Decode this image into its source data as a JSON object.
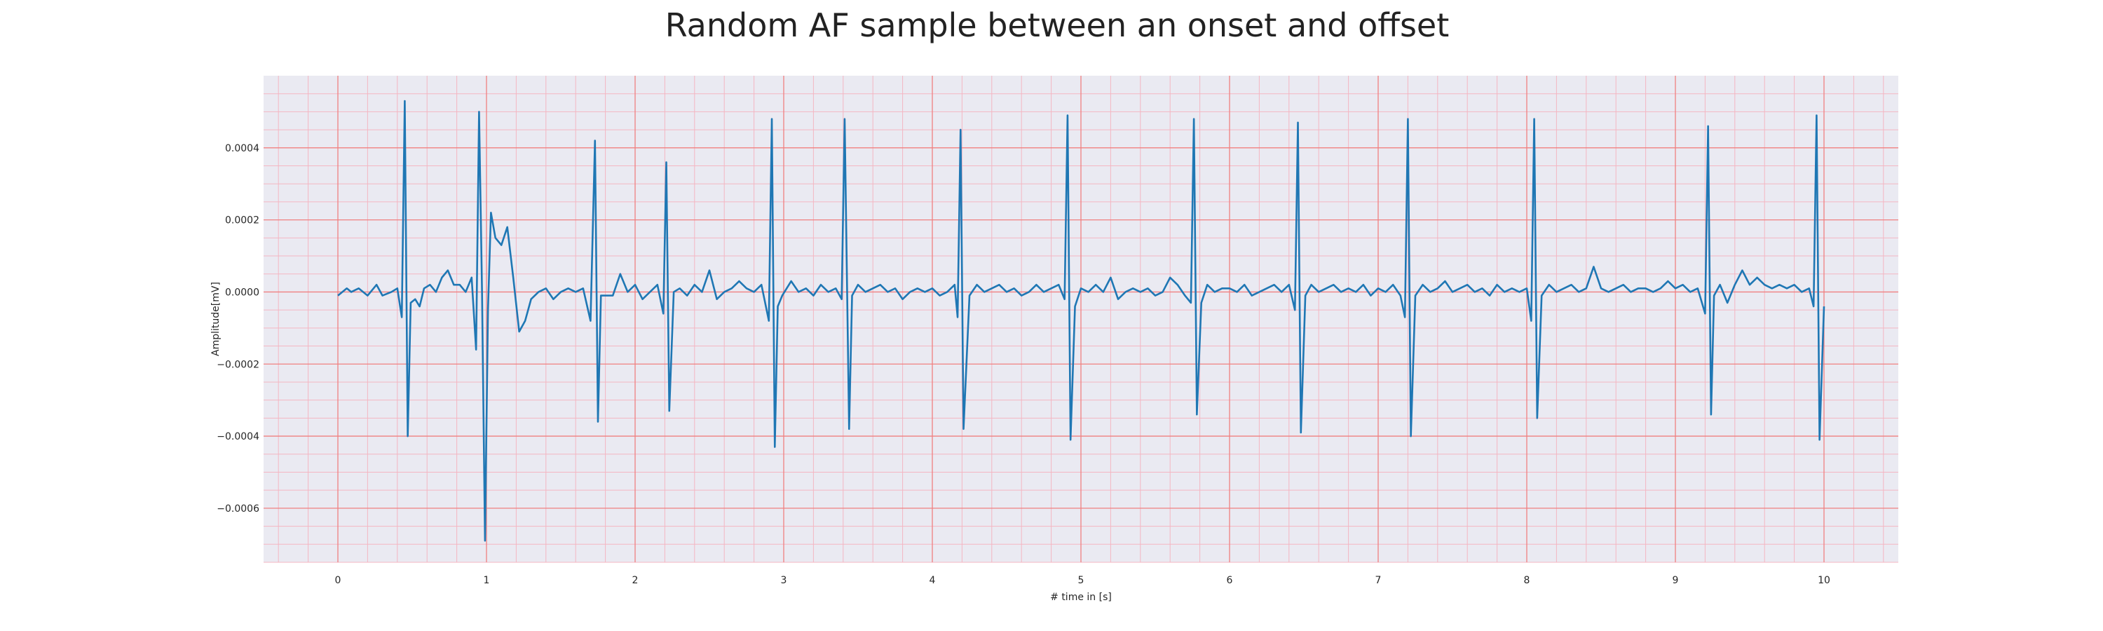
{
  "chart_data": {
    "type": "line",
    "title": "Random AF sample between an onset and offset",
    "xlabel": "# time in [s]",
    "ylabel": "Amplitude[mV]",
    "xlim": [
      -0.5,
      10.5
    ],
    "ylim": [
      -0.00075,
      0.0006
    ],
    "xticks": [
      0,
      1,
      2,
      3,
      4,
      5,
      6,
      7,
      8,
      9,
      10
    ],
    "xtick_labels": [
      "0",
      "1",
      "2",
      "3",
      "4",
      "5",
      "6",
      "7",
      "8",
      "9",
      "10"
    ],
    "yticks": [
      0.0004,
      0.0002,
      0.0,
      -0.0002,
      -0.0004,
      -0.0006
    ],
    "ytick_labels": [
      "0.0004",
      "0.0002",
      "0.0000",
      "−0.0002",
      "−0.0004",
      "−0.0006"
    ],
    "grid": true,
    "grid_minor": true,
    "legend": false,
    "colors": {
      "line": "#1f77b4",
      "background": "#eaeaf2",
      "major_grid": "#f08080",
      "minor_grid": "#f4b6c2"
    },
    "series": [
      {
        "x": [
          0,
          0.06,
          0.09,
          0.14,
          0.2,
          0.26,
          0.3,
          0.36,
          0.4,
          0.43,
          0.45,
          0.47,
          0.49,
          0.52,
          0.55,
          0.58,
          0.62,
          0.66,
          0.7,
          0.74,
          0.78,
          0.82,
          0.86,
          0.9,
          0.93,
          0.95,
          0.97,
          0.99,
          1.01,
          1.03,
          1.06,
          1.1,
          1.14,
          1.18,
          1.22,
          1.26,
          1.3,
          1.35,
          1.4,
          1.45,
          1.5,
          1.55,
          1.6,
          1.65,
          1.7,
          1.73,
          1.75,
          1.77,
          1.8,
          1.85,
          1.9,
          1.95,
          2.0,
          2.05,
          2.1,
          2.15,
          2.19,
          2.21,
          2.23,
          2.26,
          2.3,
          2.35,
          2.4,
          2.45,
          2.5,
          2.55,
          2.6,
          2.65,
          2.7,
          2.75,
          2.8,
          2.85,
          2.9,
          2.92,
          2.94,
          2.96,
          2.99,
          3.05,
          3.1,
          3.15,
          3.2,
          3.25,
          3.3,
          3.35,
          3.39,
          3.41,
          3.44,
          3.46,
          3.5,
          3.55,
          3.6,
          3.65,
          3.7,
          3.75,
          3.8,
          3.85,
          3.9,
          3.95,
          4.0,
          4.05,
          4.1,
          4.15,
          4.17,
          4.19,
          4.21,
          4.25,
          4.3,
          4.35,
          4.4,
          4.45,
          4.5,
          4.55,
          4.6,
          4.65,
          4.7,
          4.75,
          4.8,
          4.85,
          4.89,
          4.91,
          4.93,
          4.96,
          5.0,
          5.05,
          5.1,
          5.15,
          5.2,
          5.25,
          5.3,
          5.35,
          5.4,
          5.45,
          5.5,
          5.55,
          5.6,
          5.65,
          5.7,
          5.74,
          5.76,
          5.78,
          5.81,
          5.85,
          5.9,
          5.95,
          6.0,
          6.05,
          6.1,
          6.15,
          6.2,
          6.25,
          6.3,
          6.35,
          6.4,
          6.44,
          6.46,
          6.48,
          6.51,
          6.55,
          6.6,
          6.65,
          6.7,
          6.75,
          6.8,
          6.85,
          6.9,
          6.95,
          7.0,
          7.05,
          7.1,
          7.15,
          7.18,
          7.2,
          7.22,
          7.25,
          7.3,
          7.35,
          7.4,
          7.45,
          7.5,
          7.55,
          7.6,
          7.65,
          7.7,
          7.75,
          7.8,
          7.85,
          7.9,
          7.95,
          8.0,
          8.03,
          8.05,
          8.07,
          8.1,
          8.15,
          8.2,
          8.25,
          8.3,
          8.35,
          8.4,
          8.45,
          8.5,
          8.55,
          8.6,
          8.65,
          8.7,
          8.75,
          8.8,
          8.85,
          8.9,
          8.95,
          9.0,
          9.05,
          9.1,
          9.15,
          9.2,
          9.22,
          9.24,
          9.26,
          9.3,
          9.35,
          9.4,
          9.45,
          9.5,
          9.55,
          9.6,
          9.65,
          9.7,
          9.75,
          9.8,
          9.85,
          9.9,
          9.93,
          9.95,
          9.97,
          10.0
        ],
        "values": [
          -1e-05,
          1e-05,
          0.0,
          1e-05,
          -1e-05,
          2e-05,
          -1e-05,
          0.0,
          1e-05,
          -7e-05,
          0.00053,
          -0.0004,
          -3e-05,
          -2e-05,
          -4e-05,
          1e-05,
          2e-05,
          0.0,
          4e-05,
          6e-05,
          2e-05,
          2e-05,
          0.0,
          4e-05,
          -0.00016,
          0.0005,
          0.0,
          -0.00069,
          -5e-05,
          0.00022,
          0.00015,
          0.00013,
          0.00018,
          4e-05,
          -0.00011,
          -8e-05,
          -2e-05,
          0.0,
          1e-05,
          -2e-05,
          0.0,
          1e-05,
          0.0,
          1e-05,
          -8e-05,
          0.00042,
          -0.00036,
          -1e-05,
          -1e-05,
          -1e-05,
          5e-05,
          0.0,
          2e-05,
          -2e-05,
          0.0,
          2e-05,
          -6e-05,
          0.00036,
          -0.00033,
          0.0,
          1e-05,
          -1e-05,
          2e-05,
          0.0,
          6e-05,
          -2e-05,
          0.0,
          1e-05,
          3e-05,
          1e-05,
          0.0,
          2e-05,
          -8e-05,
          0.00048,
          -0.00043,
          -4e-05,
          -1e-05,
          3e-05,
          0.0,
          1e-05,
          -1e-05,
          2e-05,
          0.0,
          1e-05,
          -2e-05,
          0.00048,
          -0.00038,
          -1e-05,
          2e-05,
          0.0,
          1e-05,
          2e-05,
          0.0,
          1e-05,
          -2e-05,
          0.0,
          1e-05,
          0.0,
          1e-05,
          -1e-05,
          0.0,
          2e-05,
          -7e-05,
          0.00045,
          -0.00038,
          -1e-05,
          2e-05,
          0.0,
          1e-05,
          2e-05,
          0.0,
          1e-05,
          -1e-05,
          0.0,
          2e-05,
          0.0,
          1e-05,
          2e-05,
          -2e-05,
          0.00049,
          -0.00041,
          -4e-05,
          1e-05,
          0.0,
          2e-05,
          0.0,
          4e-05,
          -2e-05,
          0.0,
          1e-05,
          0.0,
          1e-05,
          -1e-05,
          0.0,
          4e-05,
          2e-05,
          -1e-05,
          -3e-05,
          0.00048,
          -0.00034,
          -3e-05,
          2e-05,
          0.0,
          1e-05,
          1e-05,
          0.0,
          2e-05,
          -1e-05,
          0.0,
          1e-05,
          2e-05,
          0.0,
          2e-05,
          -5e-05,
          0.00047,
          -0.00039,
          -1e-05,
          2e-05,
          0.0,
          1e-05,
          2e-05,
          0.0,
          1e-05,
          0.0,
          2e-05,
          -1e-05,
          1e-05,
          0.0,
          2e-05,
          -1e-05,
          -7e-05,
          0.00048,
          -0.0004,
          -1e-05,
          2e-05,
          0.0,
          1e-05,
          3e-05,
          0.0,
          1e-05,
          2e-05,
          0.0,
          1e-05,
          -1e-05,
          2e-05,
          0.0,
          1e-05,
          0.0,
          1e-05,
          -8e-05,
          0.00048,
          -0.00035,
          -1e-05,
          2e-05,
          0.0,
          1e-05,
          2e-05,
          0.0,
          1e-05,
          7e-05,
          1e-05,
          0.0,
          1e-05,
          2e-05,
          0.0,
          1e-05,
          1e-05,
          0.0,
          1e-05,
          3e-05,
          1e-05,
          2e-05,
          0.0,
          1e-05,
          -6e-05,
          0.00046,
          -0.00034,
          -1e-05,
          2e-05,
          -3e-05,
          2e-05,
          6e-05,
          2e-05,
          4e-05,
          2e-05,
          1e-05,
          2e-05,
          1e-05,
          2e-05,
          0.0,
          1e-05,
          -4e-05,
          0.00049,
          -0.00041,
          -4e-05
        ]
      }
    ]
  }
}
